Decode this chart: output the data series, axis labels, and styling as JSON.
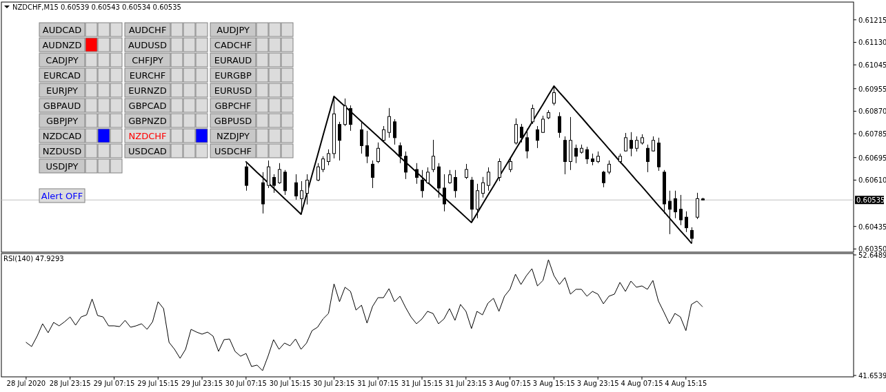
{
  "chart_data": [
    {
      "type": "candlestick",
      "title": "NZDCHF,M15 0.60539 0.60543 0.60534 0.60535",
      "color": "#000000",
      "categories": [
        null,
        null,
        null,
        null,
        null,
        null,
        null,
        null,
        null,
        null,
        null,
        null,
        null,
        null,
        null,
        null,
        null,
        null,
        null,
        null,
        null,
        null,
        null,
        null,
        null,
        null,
        null,
        null,
        null,
        null,
        null,
        null,
        null,
        null,
        null,
        null,
        null,
        null,
        null,
        null,
        null,
        null,
        null,
        null,
        null,
        null,
        null,
        null,
        null,
        null,
        null,
        null,
        null,
        null,
        null,
        null,
        null,
        null,
        null,
        null,
        null,
        null,
        null,
        null,
        null,
        null,
        null,
        null,
        null,
        null,
        null,
        null,
        null,
        null,
        null,
        null,
        null,
        null,
        null,
        null,
        null,
        null,
        null,
        null,
        null,
        null,
        null,
        null,
        null,
        null,
        null,
        null,
        null,
        null,
        null,
        null,
        null,
        null,
        null,
        null,
        null,
        null,
        null,
        null,
        null,
        null,
        null,
        null,
        null,
        null,
        null,
        null,
        null,
        null,
        null,
        null,
        null,
        null,
        null,
        null,
        null,
        null,
        null,
        null,
        null,
        null,
        null,
        null,
        null,
        null,
        null,
        null,
        null,
        null,
        null,
        null,
        null,
        null,
        null,
        null,
        null,
        null,
        null,
        null,
        null,
        null,
        null,
        null,
        null,
        null,
        null,
        null,
        null,
        null,
        null
      ],
      "ohlc": [
        null,
        null,
        null,
        null,
        null,
        null,
        null,
        null,
        null,
        null,
        null,
        null,
        null,
        null,
        null,
        null,
        null,
        null,
        null,
        null,
        null,
        null,
        null,
        null,
        null,
        null,
        null,
        null,
        null,
        null,
        null,
        null,
        null,
        null,
        null,
        null,
        null,
        null,
        null,
        null,
        null,
        null,
        null,
        null,
        [
          0.6066,
          0.60674,
          0.6057,
          0.6059
        ],
        null,
        null,
        [
          0.606,
          0.6064,
          0.60484,
          0.6052
        ],
        [
          0.6059,
          0.60684,
          0.6058,
          0.6066
        ],
        [
          0.6062,
          0.60632,
          0.60562,
          0.6059
        ],
        [
          0.606,
          0.60674,
          0.60596,
          0.6065
        ],
        [
          0.6064,
          0.60648,
          0.60554,
          0.6057
        ],
        null,
        [
          0.606,
          0.60632,
          0.60536,
          0.6055
        ],
        [
          0.6054,
          0.60606,
          0.60481,
          0.6057
        ],
        [
          0.6056,
          0.60632,
          0.60518,
          0.6061
        ],
        null,
        [
          0.6061,
          0.60674,
          0.60606,
          0.6066
        ],
        [
          0.6065,
          0.607,
          0.6064,
          0.6069
        ],
        [
          0.6068,
          0.60726,
          0.60666,
          0.6071
        ],
        [
          0.6071,
          0.60926,
          0.60692,
          0.6086
        ],
        [
          0.6082,
          0.6083,
          0.60684,
          0.6076
        ],
        [
          0.6082,
          0.60918,
          0.60814,
          0.6089
        ],
        [
          0.6088,
          0.60892,
          0.60796,
          0.6082
        ],
        null,
        [
          0.608,
          0.6083,
          0.6071,
          0.6074
        ],
        [
          0.6074,
          0.60796,
          0.60674,
          0.607
        ],
        [
          0.6067,
          0.60684,
          0.6058,
          0.6062
        ],
        [
          0.6068,
          0.60752,
          0.60674,
          0.6073
        ],
        [
          0.6076,
          0.60814,
          0.60752,
          0.608
        ],
        [
          0.6079,
          0.60882,
          0.6077,
          0.6085
        ],
        [
          0.6083,
          0.6084,
          0.60744,
          0.6077
        ],
        [
          0.6074,
          0.60752,
          0.60674,
          0.607
        ],
        [
          0.607,
          0.60718,
          0.60614,
          0.6064
        ],
        null,
        [
          0.6065,
          0.60674,
          0.60596,
          0.6062
        ],
        [
          0.6061,
          0.60648,
          0.60544,
          0.6057
        ],
        [
          0.606,
          0.60658,
          0.60596,
          0.6064
        ],
        [
          0.6065,
          0.60762,
          0.6064,
          0.607
        ],
        [
          0.6066,
          0.60674,
          0.60544,
          0.6058
        ],
        [
          0.6058,
          0.60632,
          0.60492,
          0.6052
        ],
        [
          0.606,
          0.60648,
          0.60596,
          0.6063
        ],
        [
          0.6062,
          0.60648,
          0.60544,
          0.6057
        ],
        null,
        [
          0.6062,
          0.60671,
          0.60614,
          0.6065
        ],
        [
          0.6061,
          0.60622,
          0.6045,
          0.605
        ],
        [
          0.605,
          0.60596,
          0.60466,
          0.6057
        ],
        [
          0.6056,
          0.60622,
          0.60544,
          0.606
        ],
        [
          0.6059,
          0.60658,
          0.6057,
          0.6064
        ],
        null,
        [
          0.6062,
          0.60692,
          0.60606,
          0.6068
        ],
        null,
        [
          0.6065,
          0.60692,
          0.6064,
          0.6068
        ],
        [
          0.6075,
          0.60843,
          0.60744,
          0.6082
        ],
        [
          0.6081,
          0.60822,
          0.60752,
          0.6077
        ],
        [
          0.6077,
          0.60804,
          0.60692,
          0.6072
        ],
        [
          0.6083,
          0.60895,
          0.60822,
          0.6088
        ],
        [
          0.608,
          0.60814,
          0.60731,
          0.6076
        ],
        [
          0.6079,
          0.60853,
          0.60788,
          0.6084
        ],
        [
          0.60845,
          0.60874,
          0.6084,
          0.60865
        ],
        [
          0.609,
          0.60965,
          0.60892,
          0.6094
        ],
        [
          0.6085,
          0.60866,
          0.6077,
          0.6079
        ],
        [
          0.6076,
          0.60775,
          0.60632,
          0.6068
        ],
        [
          0.6068,
          0.60848,
          0.60648,
          0.6076
        ],
        [
          0.6073,
          0.60744,
          0.60674,
          0.607
        ],
        [
          0.60715,
          0.60744,
          0.6071,
          0.6073
        ],
        [
          0.60725,
          0.60736,
          0.60671,
          0.6069
        ],
        [
          0.6069,
          0.6071,
          0.60666,
          0.6068
        ],
        [
          0.6068,
          0.60718,
          0.60674,
          0.607
        ],
        [
          0.6064,
          0.60645,
          0.60583,
          0.606
        ],
        [
          0.6064,
          0.60684,
          0.60632,
          0.6067
        ],
        null,
        [
          0.6068,
          0.6071,
          0.60674,
          0.607
        ],
        [
          0.6072,
          0.60788,
          0.60718,
          0.6077
        ],
        [
          0.6076,
          0.60791,
          0.607,
          0.6073
        ],
        [
          0.6073,
          0.60775,
          0.60718,
          0.6076
        ],
        [
          0.6075,
          0.60783,
          0.60744,
          0.6077
        ],
        [
          0.6073,
          0.60744,
          0.6064,
          0.6068
        ],
        [
          0.6072,
          0.60775,
          0.60718,
          0.6076
        ],
        [
          0.6075,
          0.6077,
          0.60645,
          0.6066
        ],
        [
          0.6064,
          0.60648,
          0.60484,
          0.6052
        ],
        [
          0.6053,
          0.6057,
          0.60406,
          0.605
        ],
        [
          0.6054,
          0.6057,
          0.60466,
          0.6049
        ],
        [
          0.605,
          0.60554,
          0.6044,
          0.6046
        ],
        [
          0.6047,
          0.60492,
          0.60414,
          0.6043
        ],
        [
          0.6042,
          0.60432,
          0.60372,
          0.6039
        ],
        [
          0.6047,
          0.60562,
          0.60463,
          0.6054
        ],
        [
          0.60539,
          0.60543,
          0.60534,
          0.60535
        ],
        null,
        null,
        null,
        null,
        null,
        null,
        null,
        null,
        null,
        null,
        null,
        null,
        null,
        null,
        null,
        null,
        null,
        null,
        null,
        null,
        null,
        null,
        null,
        null,
        null,
        null,
        null
      ],
      "series": [
        {
          "type": "line",
          "color": "#000000",
          "values": [
            null,
            null,
            null,
            null,
            null,
            null,
            null,
            null,
            null,
            null,
            null,
            null,
            null,
            null,
            null,
            null,
            null,
            null,
            null,
            null,
            null,
            null,
            null,
            null,
            null,
            null,
            null,
            null,
            null,
            null,
            null,
            null,
            null,
            null,
            null,
            null,
            null,
            null,
            null,
            null,
            null,
            null,
            null,
            null,
            0.60679,
            0.60659,
            0.60639,
            0.6062,
            0.606,
            0.6058,
            0.6056,
            0.6054,
            0.60521,
            0.60501,
            0.60481,
            0.60555,
            0.60629,
            0.60703,
            0.60778,
            0.60852,
            0.60926,
            0.60907,
            0.60888,
            0.60869,
            0.6085,
            0.60831,
            0.60812,
            0.60793,
            0.60774,
            0.60755,
            0.60736,
            0.60717,
            0.60697,
            0.60678,
            0.60659,
            0.6064,
            0.60621,
            0.60602,
            0.60583,
            0.60564,
            0.60545,
            0.60526,
            0.60507,
            0.60488,
            0.60469,
            0.6045,
            0.60484,
            0.60519,
            0.60553,
            0.60587,
            0.60622,
            0.60656,
            0.6069,
            0.60725,
            0.60759,
            0.60793,
            0.60828,
            0.60862,
            0.60896,
            0.60931,
            0.60965,
            0.60941,
            0.60918,
            0.60894,
            0.6087,
            0.60847,
            0.60823,
            0.60799,
            0.60775,
            0.60752,
            0.60728,
            0.60704,
            0.6068,
            0.60657,
            0.60633,
            0.60609,
            0.60586,
            0.60562,
            0.60538,
            0.60514,
            0.60491,
            0.60467,
            0.60443,
            0.60419,
            0.60396,
            0.60372,
            null,
            null,
            null,
            null,
            null,
            null,
            null,
            null,
            null,
            null,
            null,
            null,
            null,
            null,
            null,
            null,
            null,
            null,
            null,
            null,
            null,
            null,
            null,
            null,
            null,
            null,
            null,
            null,
            null
          ]
        }
      ],
      "ylim": [
        0.60338,
        0.61282
      ],
      "yticks": [
        0.61215,
        {
          "value": 0.6113,
          "label": "0.61130"
        },
        0.61045,
        0.60955,
        {
          "value": 0.6087,
          "label": "0.60870"
        },
        0.60785,
        0.60695,
        {
          "value": 0.6061,
          "label": "0.60610"
        },
        0.60435,
        {
          "value": 0.6035,
          "label": "0.60350"
        }
      ],
      "tick_labels": "y",
      "ref_lines": [
        {
          "axis": "y",
          "value": 0.60535,
          "label": "0.60535",
          "color": "#c0c0c0"
        }
      ],
      "annotations": [
        "AUDCAD",
        "AUDCHF",
        "AUDJPY",
        "AUDNZD",
        "AUDUSD",
        "CADCHF",
        "CADJPY",
        "CHFJPY",
        "EURAUD",
        "EURCAD",
        "EURCHF",
        "EURGBP",
        "EURJPY",
        "EURNZD",
        "EURUSD",
        "GBPAUD",
        "GBPCAD",
        "GBPCHF",
        "GBPJPY",
        "GBPNZD",
        "GBPUSD",
        "NZDCAD",
        "NZDCHF",
        "NZDJPY",
        "NZDUSD",
        "USDCAD",
        "USDCHF",
        "USDJPY",
        "Alert OFF"
      ]
    },
    {
      "type": "line",
      "title": "RSI(140) 47.9293",
      "color": "#000000",
      "categories": [
        null,
        null,
        null,
        null,
        "28 Jul 2020",
        null,
        null,
        null,
        null,
        null,
        null,
        null,
        "28 Jul 23:15",
        null,
        null,
        null,
        null,
        null,
        null,
        null,
        "29 Jul 07:15",
        null,
        null,
        null,
        null,
        null,
        null,
        null,
        "29 Jul 15:15",
        null,
        null,
        null,
        null,
        null,
        null,
        null,
        "29 Jul 23:15",
        null,
        null,
        null,
        null,
        null,
        null,
        null,
        "30 Jul 07:15",
        null,
        null,
        null,
        null,
        null,
        null,
        null,
        "30 Jul 15:15",
        null,
        null,
        null,
        null,
        null,
        null,
        null,
        "30 Jul 23:15",
        null,
        null,
        null,
        null,
        null,
        null,
        null,
        "31 Jul 07:15",
        null,
        null,
        null,
        null,
        null,
        null,
        null,
        "31 Jul 15:15",
        null,
        null,
        null,
        null,
        null,
        null,
        null,
        "31 Jul 23:15",
        null,
        null,
        null,
        null,
        null,
        null,
        null,
        "3 Aug 07:15",
        null,
        null,
        null,
        null,
        null,
        null,
        null,
        "3 Aug 15:15",
        null,
        null,
        null,
        null,
        null,
        null,
        null,
        "3 Aug 23:15",
        null,
        null,
        null,
        null,
        null,
        null,
        null,
        "4 Aug 07:15",
        null,
        null,
        null,
        null,
        null,
        null,
        null,
        "4 Aug 15:15",
        null,
        null,
        null,
        null,
        null,
        null,
        null,
        null,
        null,
        null,
        null,
        null,
        null,
        null,
        null,
        null,
        null,
        null,
        null,
        null,
        null,
        null,
        null,
        null,
        null,
        null,
        null,
        null,
        null,
        null
      ],
      "values": [
        null,
        null,
        null,
        null,
        44.67,
        44.29,
        45.24,
        46.37,
        45.55,
        46.49,
        46.18,
        46.55,
        46.99,
        46.24,
        46.99,
        47.18,
        48.63,
        47.12,
        46.99,
        46.18,
        46.18,
        46.11,
        46.68,
        46.05,
        46.18,
        46.37,
        45.86,
        46.55,
        48.38,
        47.75,
        44.67,
        44.04,
        43.22,
        44.04,
        45.86,
        45.61,
        45.42,
        45.61,
        45.24,
        43.85,
        44.92,
        44.98,
        43.85,
        43.41,
        43.66,
        42.47,
        42.6,
        42.09,
        43.41,
        44.92,
        44.04,
        44.61,
        44.36,
        44.98,
        44.04,
        44.61,
        45.74,
        46.05,
        46.81,
        47.31,
        50.01,
        48.38,
        49.7,
        49.32,
        47.62,
        48.06,
        46.43,
        47.94,
        48.75,
        48.75,
        49.57,
        48.38,
        48.88,
        47.87,
        46.99,
        46.37,
        46.81,
        47.5,
        47.31,
        46.37,
        46.81,
        47.75,
        46.68,
        48.13,
        47.5,
        45.93,
        47.5,
        47.18,
        48.25,
        48.69,
        47.5,
        48.88,
        49.51,
        50.89,
        49.95,
        50.76,
        51.39,
        49.82,
        50.32,
        52.21,
        50.76,
        49.95,
        50.58,
        49.07,
        49.51,
        49.51,
        48.88,
        49.32,
        49.07,
        48.19,
        48.88,
        49.07,
        50.14,
        49.32,
        50.26,
        49.7,
        49.82,
        49.51,
        50.32,
        48.44,
        47.43,
        46.37,
        47.31,
        46.99,
        45.74,
        48.13,
        48.44,
        47.93,
        null,
        null,
        null,
        null,
        null,
        null,
        null,
        null,
        null,
        null,
        null,
        null,
        null,
        null,
        null,
        null,
        null,
        null,
        null,
        null,
        null,
        null,
        null,
        null,
        null,
        null,
        null
      ],
      "ylim": [
        41.528,
        52.775
      ],
      "yticks": [
        52.6489,
        41.6539
      ]
    }
  ]
}
